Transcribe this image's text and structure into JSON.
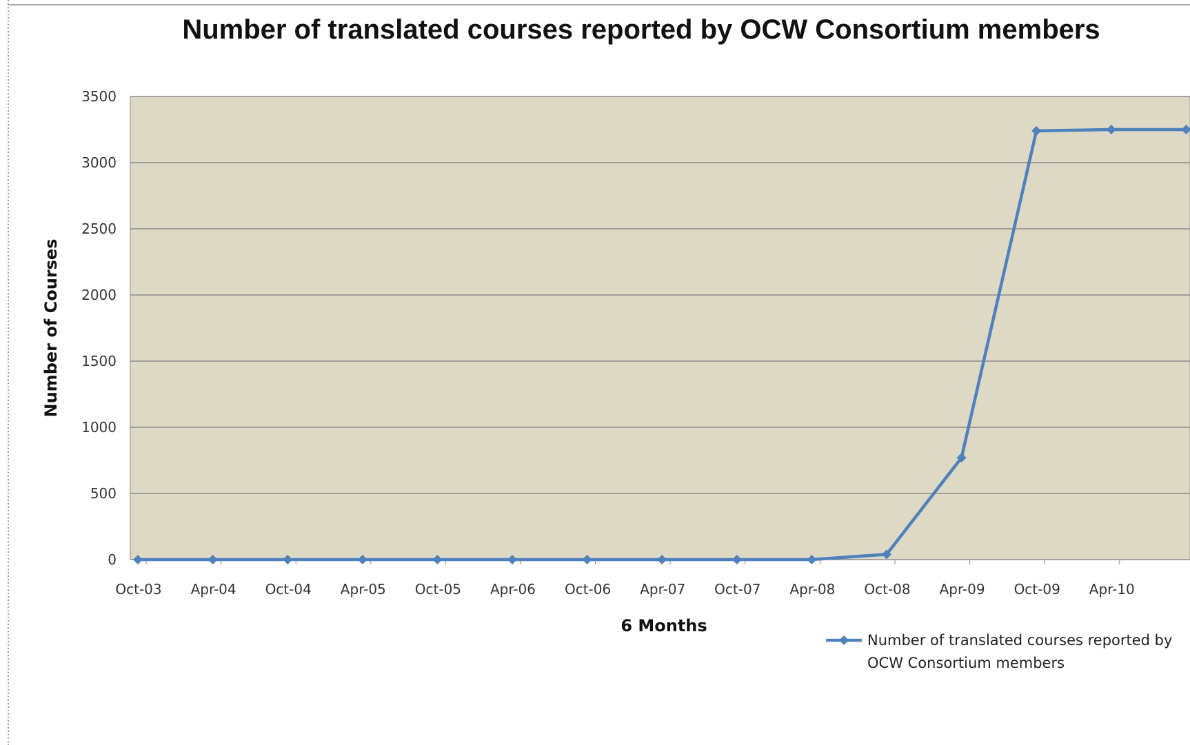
{
  "chart_data": {
    "type": "line",
    "title": "Number of translated courses reported by OCW Consortium members",
    "x_label": "6 Months",
    "y_label": "Number of Courses",
    "categories": [
      "Oct-03",
      "Apr-04",
      "Oct-04",
      "Apr-05",
      "Oct-05",
      "Apr-06",
      "Oct-06",
      "Apr-07",
      "Oct-07",
      "Apr-08",
      "Oct-08",
      "Apr-09",
      "Oct-09",
      "Apr-10",
      null
    ],
    "series": [
      {
        "name": "Number of translated courses reported by OCW Consortium members",
        "color": "#4f81bd",
        "values": [
          0,
          0,
          0,
          0,
          0,
          0,
          0,
          0,
          0,
          0,
          40,
          770,
          3240,
          3250,
          3250
        ]
      }
    ],
    "ylim": [
      0,
      3500
    ],
    "yticks": [
      0,
      500,
      1000,
      1500,
      2000,
      2500,
      3000,
      3500
    ],
    "grid": true
  }
}
